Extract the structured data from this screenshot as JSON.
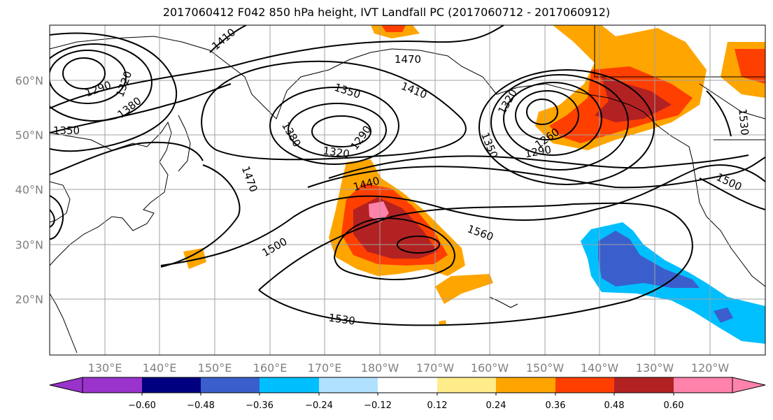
{
  "title": "2017060412 F042 850 hPa height, IVT Landfall PC (2017060712 - 2017060912)",
  "lat_labels": [
    "60°N",
    "50°N",
    "40°N",
    "30°N",
    "20°N"
  ],
  "lon_labels": [
    "130°E",
    "140°E",
    "150°E",
    "160°E",
    "170°E",
    "180°W",
    "170°W",
    "160°W",
    "150°W",
    "140°W",
    "130°W",
    "120°W"
  ],
  "contour_labels": [
    "1410",
    "1470",
    "1410",
    "1350",
    "1290",
    "1320",
    "1380",
    "1350",
    "1320",
    "1290",
    "1380",
    "1320",
    "1260",
    "1290",
    "1350",
    "1470",
    "1440",
    "1500",
    "1560",
    "1500",
    "1530",
    "1530"
  ],
  "colorbar": {
    "ticks": [
      "−0.60",
      "−0.48",
      "−0.36",
      "−0.24",
      "−0.12",
      "0.12",
      "0.24",
      "0.36",
      "0.48",
      "0.60"
    ],
    "colors": [
      "#9933cc",
      "#000080",
      "#3a5fcd",
      "#00bfff",
      "#b0e2ff",
      "#ffffff",
      "#ffec8b",
      "#ffa500",
      "#ff3f00",
      "#b22222",
      "#ff82ab"
    ]
  }
}
